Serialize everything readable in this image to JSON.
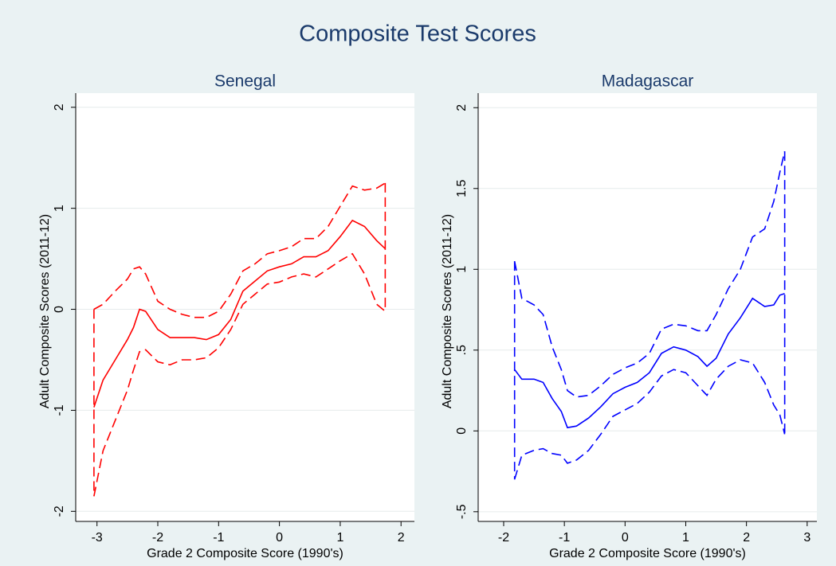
{
  "title": "Composite Test Scores",
  "chart_data": [
    {
      "type": "line",
      "title": "Senegal",
      "x_label": "Grade 2 Composite Score (1990's)",
      "y_label": "Adult Composite Scores (2011-12)",
      "xlim": [
        -3.35,
        2.22
      ],
      "ylim": [
        -2.1,
        2.14
      ],
      "xticks": [
        -3,
        -2,
        -1,
        0,
        1,
        2
      ],
      "yticks": [
        -2,
        -1,
        0,
        1,
        2
      ],
      "grid": true,
      "x": [
        -3.05,
        -2.9,
        -2.7,
        -2.5,
        -2.4,
        -2.3,
        -2.2,
        -2.0,
        -1.8,
        -1.6,
        -1.4,
        -1.2,
        -1.0,
        -0.8,
        -0.6,
        -0.4,
        -0.2,
        0,
        0.2,
        0.4,
        0.6,
        0.8,
        1.0,
        1.2,
        1.4,
        1.6,
        1.74
      ],
      "series": [
        {
          "color": "#ff0000",
          "dashed": false,
          "values": [
            -0.97,
            -0.7,
            -0.5,
            -0.3,
            -0.18,
            0.0,
            -0.02,
            -0.2,
            -0.28,
            -0.28,
            -0.28,
            -0.3,
            -0.25,
            -0.1,
            0.18,
            0.28,
            0.38,
            0.42,
            0.45,
            0.52,
            0.52,
            0.58,
            0.72,
            0.88,
            0.82,
            0.68,
            0.6
          ]
        },
        {
          "color": "#ff0000",
          "dashed": true,
          "values": [
            0.0,
            0.05,
            0.18,
            0.3,
            0.4,
            0.42,
            0.35,
            0.08,
            0.0,
            -0.05,
            -0.08,
            -0.08,
            -0.02,
            0.15,
            0.38,
            0.45,
            0.55,
            0.58,
            0.62,
            0.7,
            0.7,
            0.82,
            1.02,
            1.22,
            1.18,
            1.2,
            1.25
          ]
        },
        {
          "color": "#ff0000",
          "dashed": true,
          "values": [
            -1.85,
            -1.4,
            -1.1,
            -0.8,
            -0.6,
            -0.42,
            -0.4,
            -0.52,
            -0.55,
            -0.5,
            -0.5,
            -0.48,
            -0.38,
            -0.2,
            0.05,
            0.15,
            0.25,
            0.27,
            0.32,
            0.35,
            0.32,
            0.4,
            0.48,
            0.55,
            0.35,
            0.05,
            -0.02
          ]
        }
      ]
    },
    {
      "type": "line",
      "title": "Madagascar",
      "x_label": "Grade 2 Composite Score (1990's)",
      "y_label": "Adult Composite Scores (2011-12)",
      "xlim": [
        -2.42,
        3.16
      ],
      "ylim": [
        -0.56,
        2.09
      ],
      "xticks": [
        -2,
        -1,
        0,
        1,
        2,
        3
      ],
      "yticks": [
        {
          "value": -0.5,
          "label": "-.5"
        },
        0,
        {
          "value": 0.5,
          "label": ".5"
        },
        1,
        1.5,
        2
      ],
      "grid": true,
      "x": [
        -1.82,
        -1.7,
        -1.5,
        -1.35,
        -1.2,
        -1.05,
        -0.95,
        -0.8,
        -0.6,
        -0.4,
        -0.2,
        0,
        0.2,
        0.4,
        0.6,
        0.8,
        1.0,
        1.2,
        1.35,
        1.5,
        1.7,
        1.9,
        2.1,
        2.3,
        2.45,
        2.55,
        2.63
      ],
      "series": [
        {
          "color": "#0000ff",
          "dashed": false,
          "values": [
            0.38,
            0.32,
            0.32,
            0.3,
            0.2,
            0.12,
            0.02,
            0.03,
            0.08,
            0.15,
            0.23,
            0.27,
            0.3,
            0.36,
            0.48,
            0.52,
            0.5,
            0.46,
            0.4,
            0.45,
            0.6,
            0.7,
            0.82,
            0.77,
            0.78,
            0.84,
            0.85
          ]
        },
        {
          "color": "#0000ff",
          "dashed": true,
          "values": [
            1.05,
            0.82,
            0.78,
            0.72,
            0.52,
            0.38,
            0.25,
            0.21,
            0.22,
            0.28,
            0.35,
            0.39,
            0.42,
            0.48,
            0.63,
            0.66,
            0.65,
            0.62,
            0.62,
            0.72,
            0.88,
            1.0,
            1.2,
            1.25,
            1.42,
            1.6,
            1.73
          ]
        },
        {
          "color": "#0000ff",
          "dashed": true,
          "values": [
            -0.3,
            -0.15,
            -0.12,
            -0.11,
            -0.14,
            -0.15,
            -0.2,
            -0.18,
            -0.12,
            -0.02,
            0.09,
            0.13,
            0.17,
            0.24,
            0.34,
            0.38,
            0.36,
            0.28,
            0.22,
            0.32,
            0.4,
            0.44,
            0.42,
            0.3,
            0.16,
            0.1,
            -0.02
          ]
        }
      ]
    }
  ]
}
